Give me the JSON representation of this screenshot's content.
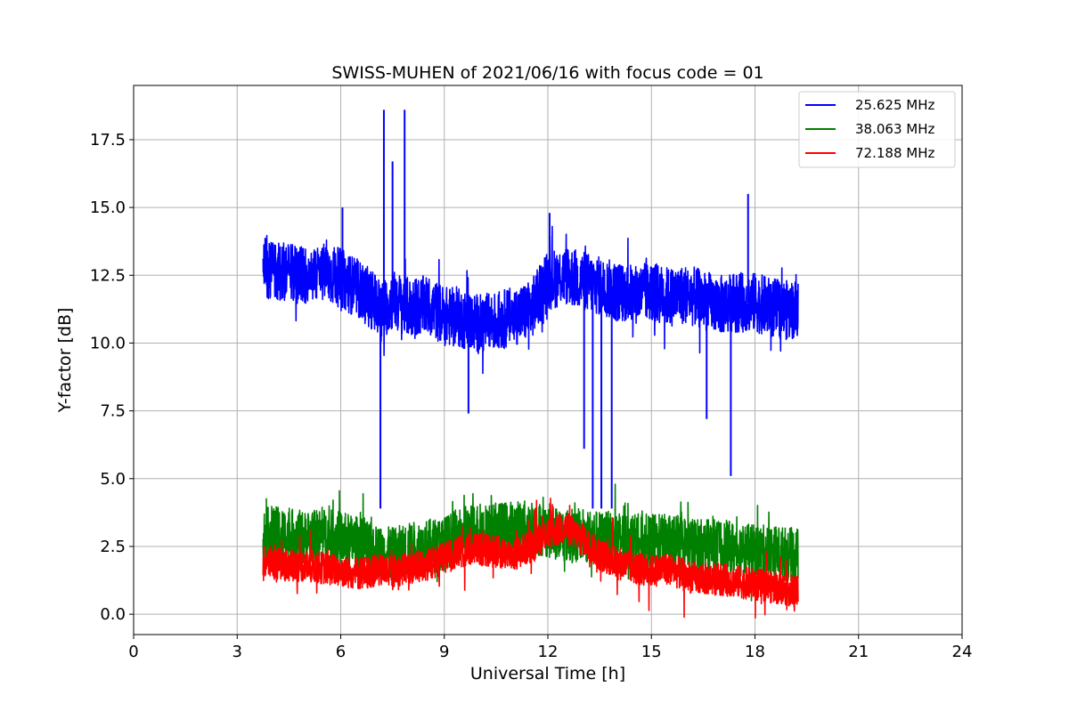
{
  "chart_data": {
    "type": "line",
    "title": "SWISS-MUHEN of 2021/06/16 with focus code = 01",
    "xlabel": "Universal Time [h]",
    "ylabel": "Y-factor [dB]",
    "xlim": [
      0,
      24
    ],
    "ylim": [
      -0.75,
      19.5
    ],
    "xticks": [
      0,
      3,
      6,
      9,
      12,
      15,
      18,
      21,
      24
    ],
    "xtick_labels": [
      "0",
      "3",
      "6",
      "9",
      "12",
      "15",
      "18",
      "21",
      "24"
    ],
    "yticks": [
      0,
      2.5,
      5,
      7.5,
      10,
      12.5,
      15,
      17.5
    ],
    "ytick_labels": [
      "0.0",
      "2.5",
      "5.0",
      "7.5",
      "10.0",
      "12.5",
      "15.0",
      "17.5"
    ],
    "grid": true,
    "legend_position": "top-right",
    "series": [
      {
        "name": "25.625 MHz",
        "color": "#0000ff",
        "x": [
          3.75,
          4.0,
          4.5,
          5.0,
          5.5,
          6.0,
          6.5,
          7.0,
          7.2,
          7.5,
          8.0,
          8.5,
          9.0,
          9.5,
          10.0,
          10.5,
          11.0,
          11.5,
          12.0,
          12.5,
          13.0,
          13.5,
          14.0,
          14.5,
          15.0,
          15.5,
          16.0,
          16.5,
          17.0,
          17.5,
          18.0,
          18.5,
          19.0,
          19.25
        ],
        "y": [
          12.8,
          12.7,
          12.6,
          12.5,
          12.6,
          12.4,
          12.0,
          11.5,
          11.2,
          11.6,
          11.3,
          11.4,
          11.0,
          10.9,
          10.7,
          10.8,
          11.0,
          11.2,
          12.3,
          12.5,
          12.3,
          12.1,
          11.9,
          11.8,
          11.9,
          11.7,
          11.8,
          11.6,
          11.4,
          11.5,
          11.5,
          11.3,
          11.2,
          11.3
        ],
        "spikes_high": [
          [
            7.25,
            18.6
          ],
          [
            7.85,
            18.6
          ],
          [
            7.5,
            16.7
          ],
          [
            12.05,
            14.8
          ],
          [
            17.8,
            15.5
          ],
          [
            6.05,
            15.0
          ]
        ],
        "spikes_low": [
          [
            7.15,
            3.9
          ],
          [
            13.3,
            3.9
          ],
          [
            13.55,
            3.9
          ],
          [
            13.85,
            3.9
          ],
          [
            13.05,
            6.1
          ],
          [
            16.6,
            7.2
          ],
          [
            17.3,
            5.1
          ],
          [
            9.7,
            7.4
          ]
        ]
      },
      {
        "name": "38.063 MHz",
        "color": "#008000",
        "x": [
          3.75,
          4.0,
          4.5,
          5.0,
          5.5,
          6.0,
          6.5,
          7.0,
          7.5,
          8.0,
          8.5,
          9.0,
          9.5,
          10.0,
          10.5,
          11.0,
          11.5,
          12.0,
          12.5,
          13.0,
          13.5,
          14.0,
          14.5,
          15.0,
          15.5,
          16.0,
          16.5,
          17.0,
          17.5,
          18.0,
          18.5,
          19.0,
          19.25
        ],
        "y": [
          2.9,
          3.0,
          2.9,
          2.8,
          2.9,
          2.8,
          2.6,
          2.3,
          2.2,
          2.4,
          2.5,
          2.6,
          3.0,
          3.1,
          3.1,
          3.2,
          3.2,
          3.1,
          2.9,
          2.9,
          2.8,
          2.8,
          2.7,
          2.7,
          2.7,
          2.6,
          2.5,
          2.5,
          2.4,
          2.3,
          2.3,
          2.2,
          2.2
        ]
      },
      {
        "name": "72.188 MHz",
        "color": "#ff0000",
        "x": [
          3.75,
          4.0,
          4.5,
          5.0,
          5.5,
          6.0,
          6.5,
          7.0,
          7.5,
          8.0,
          8.5,
          9.0,
          9.5,
          10.0,
          10.5,
          11.0,
          11.5,
          12.0,
          12.5,
          13.0,
          13.5,
          14.0,
          14.5,
          15.0,
          15.5,
          16.0,
          16.5,
          17.0,
          17.5,
          18.0,
          18.5,
          19.0,
          19.25
        ],
        "y": [
          1.9,
          1.9,
          1.8,
          1.8,
          1.7,
          1.6,
          1.5,
          1.6,
          1.6,
          1.7,
          1.8,
          2.1,
          2.3,
          2.4,
          2.3,
          2.2,
          2.5,
          3.0,
          3.2,
          2.8,
          2.2,
          1.9,
          1.7,
          1.6,
          1.7,
          1.4,
          1.3,
          1.3,
          1.2,
          1.1,
          1.0,
          0.9,
          0.8
        ]
      }
    ]
  }
}
